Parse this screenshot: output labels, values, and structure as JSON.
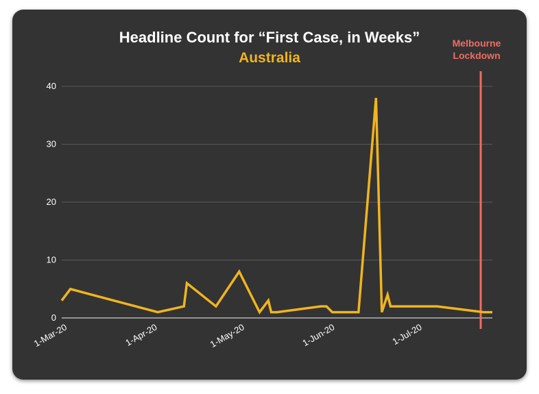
{
  "colors": {
    "background": "#333333",
    "line": "#f0b51e",
    "marker": "#f26b63",
    "grid": "#5a5a5a",
    "text": "#ffffff"
  },
  "chart_data": {
    "type": "line",
    "title": "Headline Count for “First Case, in Weeks”",
    "subtitle": "Australia",
    "xlabel": "",
    "ylabel": "",
    "ylim": [
      0,
      40
    ],
    "yticks": [
      0,
      10,
      20,
      30,
      40
    ],
    "xlim": [
      "2020-02-28",
      "2020-07-25"
    ],
    "xticks": [
      {
        "date": "2020-03-01",
        "label": "1-Mar-20"
      },
      {
        "date": "2020-04-01",
        "label": "1-Apr-20"
      },
      {
        "date": "2020-05-01",
        "label": "1-May-20"
      },
      {
        "date": "2020-06-01",
        "label": "1-Jun-20"
      },
      {
        "date": "2020-07-01",
        "label": "1-Jul-20"
      }
    ],
    "grid": true,
    "series": [
      {
        "points": [
          [
            "2020-02-28",
            3
          ],
          [
            "2020-03-02",
            5
          ],
          [
            "2020-04-01",
            1
          ],
          [
            "2020-04-10",
            2
          ],
          [
            "2020-04-11",
            6
          ],
          [
            "2020-04-21",
            2
          ],
          [
            "2020-04-29",
            8
          ],
          [
            "2020-05-06",
            1
          ],
          [
            "2020-05-09",
            3
          ],
          [
            "2020-05-10",
            1
          ],
          [
            "2020-05-12",
            1
          ],
          [
            "2020-05-27",
            2
          ],
          [
            "2020-05-29",
            2
          ],
          [
            "2020-05-31",
            1
          ],
          [
            "2020-06-09",
            1
          ],
          [
            "2020-06-15",
            38
          ],
          [
            "2020-06-17",
            1
          ],
          [
            "2020-06-19",
            4
          ],
          [
            "2020-06-20",
            2
          ],
          [
            "2020-06-26",
            2
          ],
          [
            "2020-07-06",
            2
          ],
          [
            "2020-07-22",
            1
          ],
          [
            "2020-07-25",
            1
          ]
        ]
      }
    ],
    "annotations": [
      {
        "date": "2020-07-21",
        "lines": [
          "Melbourne",
          "Lockdown"
        ]
      }
    ]
  }
}
